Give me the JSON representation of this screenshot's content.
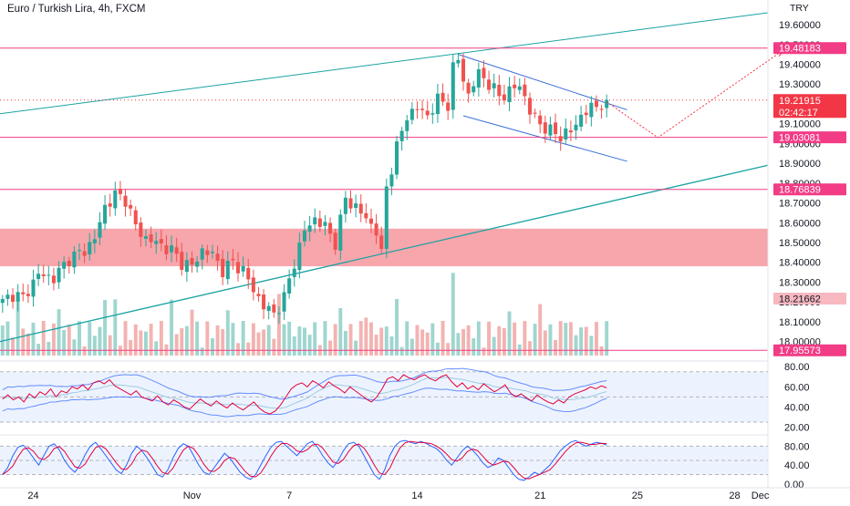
{
  "header": {
    "title": "Euro / Turkish Lira, 4h, FXCM"
  },
  "axis_currency": "TRY",
  "chart_data": [
    {
      "type": "candlestick",
      "symbol": "EURTRY",
      "interval": "4h",
      "ylim": [
        17.92,
        19.66
      ],
      "y_ticks": [
        "19.60000",
        "19.50000",
        "19.40000",
        "19.30000",
        "19.20000",
        "19.10000",
        "19.00000",
        "18.90000",
        "18.80000",
        "18.70000",
        "18.60000",
        "18.50000",
        "18.40000",
        "18.30000",
        "18.20000",
        "18.10000",
        "18.00000"
      ],
      "y_tick_values": [
        19.6,
        19.5,
        19.4,
        19.3,
        19.2,
        19.1,
        19.0,
        18.9,
        18.8,
        18.7,
        18.6,
        18.5,
        18.4,
        18.3,
        18.2,
        18.1,
        18.0
      ],
      "x_ticks": [
        {
          "label": "24",
          "bar": 6
        },
        {
          "label": "Nov",
          "bar": 37
        },
        {
          "label": "7",
          "bar": 56
        },
        {
          "label": "14",
          "bar": 81
        },
        {
          "label": "21",
          "bar": 105
        },
        {
          "label": "25",
          "bar": 124
        },
        {
          "label": "28",
          "bar": 143
        },
        {
          "label": "Dec",
          "bar": 148
        }
      ],
      "ohlc_key_closes": [
        [
          0,
          18.2
        ],
        [
          2,
          18.24
        ],
        [
          4,
          18.22
        ],
        [
          7,
          18.34
        ],
        [
          10,
          18.32
        ],
        [
          13,
          18.42
        ],
        [
          16,
          18.46
        ],
        [
          18,
          18.52
        ],
        [
          20,
          18.68
        ],
        [
          22,
          18.74
        ],
        [
          24,
          18.72
        ],
        [
          26,
          18.58
        ],
        [
          28,
          18.52
        ],
        [
          30,
          18.5
        ],
        [
          33,
          18.46
        ],
        [
          35,
          18.4
        ],
        [
          37,
          18.38
        ],
        [
          39,
          18.46
        ],
        [
          41,
          18.44
        ],
        [
          43,
          18.36
        ],
        [
          45,
          18.4
        ],
        [
          47,
          18.36
        ],
        [
          49,
          18.26
        ],
        [
          51,
          18.18
        ],
        [
          53,
          18.14
        ],
        [
          55,
          18.22
        ],
        [
          57,
          18.4
        ],
        [
          59,
          18.56
        ],
        [
          61,
          18.62
        ],
        [
          63,
          18.58
        ],
        [
          65,
          18.5
        ],
        [
          67,
          18.72
        ],
        [
          69,
          18.68
        ],
        [
          71,
          18.62
        ],
        [
          73,
          18.56
        ],
        [
          74,
          18.44
        ],
        [
          75,
          18.78
        ],
        [
          77,
          18.98
        ],
        [
          79,
          19.14
        ],
        [
          81,
          19.18
        ],
        [
          83,
          19.14
        ],
        [
          85,
          19.22
        ],
        [
          87,
          19.2
        ],
        [
          88,
          19.38
        ],
        [
          89,
          19.42
        ],
        [
          91,
          19.24
        ],
        [
          93,
          19.36
        ],
        [
          95,
          19.3
        ],
        [
          97,
          19.24
        ],
        [
          99,
          19.26
        ],
        [
          101,
          19.3
        ],
        [
          103,
          19.16
        ],
        [
          105,
          19.1
        ],
        [
          107,
          19.06
        ],
        [
          109,
          19.04
        ],
        [
          111,
          19.06
        ],
        [
          113,
          19.14
        ],
        [
          115,
          19.18
        ],
        [
          117,
          19.2
        ],
        [
          118,
          19.22
        ]
      ],
      "horizontal_levels": [
        {
          "price": 19.48183,
          "label": "19.48183",
          "color": "#f23c85"
        },
        {
          "price": 19.03081,
          "label": "19.03081",
          "color": "#f23c85"
        },
        {
          "price": 18.76839,
          "label": "18.76839",
          "color": "#f23c85"
        },
        {
          "price": 17.95573,
          "label": "17.95573",
          "color": "#f23c85"
        }
      ],
      "last_price": {
        "price": 19.21915,
        "label": "19.21915",
        "countdown": "02:42:17",
        "color": "#f23645"
      },
      "other_marker": {
        "price": 18.21662,
        "label": "18.21662",
        "color": "#f7b8c0"
      },
      "zone": {
        "top": 18.57,
        "bottom": 18.38,
        "color": "#f7a1a8"
      },
      "colors": {
        "up": "#26a69a",
        "down": "#ef5350",
        "vol_up": "#9fd6cf",
        "vol_down": "#f3b3b1",
        "trend": "#1aa3a3",
        "channel": "#3b6fd6",
        "projection": "#f23645"
      }
    },
    {
      "type": "line",
      "indicator": "rsi",
      "ylim": [
        15,
        82
      ],
      "y_ticks": [
        "80.00",
        "60.00",
        "40.00",
        "20.00"
      ],
      "y_tick_values": [
        80,
        60,
        40,
        20
      ],
      "dashed_levels": [
        75,
        50,
        25
      ],
      "series": [
        {
          "key": "rsi",
          "color": "#e3003d"
        },
        {
          "key": "rsi_ma",
          "color": "#9ccbe0"
        },
        {
          "key": "band_upper",
          "color": "#2962ff"
        },
        {
          "key": "band_lower",
          "color": "#2962ff"
        }
      ],
      "rsi_values": [
        48,
        52,
        47,
        50,
        45,
        53,
        49,
        55,
        52,
        58,
        50,
        56,
        54,
        60,
        58,
        62,
        57,
        64,
        66,
        63,
        67,
        61,
        58,
        55,
        52,
        56,
        50,
        48,
        46,
        51,
        45,
        42,
        47,
        44,
        40,
        38,
        43,
        48,
        44,
        41,
        46,
        42,
        39,
        44,
        40,
        37,
        41,
        45,
        39,
        35,
        33,
        36,
        42,
        50,
        58,
        62,
        64,
        60,
        66,
        63,
        59,
        65,
        61,
        58,
        54,
        60,
        56,
        52,
        48,
        45,
        50,
        58,
        68,
        70,
        66,
        72,
        69,
        67,
        70,
        72,
        68,
        66,
        70,
        72,
        65,
        60,
        64,
        58,
        61,
        57,
        63,
        59,
        55,
        58,
        62,
        54,
        50,
        53,
        49,
        46,
        52,
        48,
        45,
        43,
        47,
        44,
        50,
        53,
        55,
        57,
        60,
        58,
        61,
        59
      ]
    },
    {
      "type": "line",
      "indicator": "stochastic",
      "ylim": [
        -2,
        98
      ],
      "y_ticks": [
        "80.00",
        "40.00",
        "0.00"
      ],
      "y_tick_values": [
        80,
        40,
        0
      ],
      "dashed_levels": [
        80,
        50,
        20
      ],
      "series": [
        {
          "key": "k",
          "color": "#2962ff"
        },
        {
          "key": "d",
          "color": "#e3003d"
        }
      ],
      "k_values": [
        20,
        35,
        60,
        78,
        82,
        70,
        55,
        40,
        60,
        80,
        85,
        72,
        50,
        35,
        25,
        40,
        62,
        80,
        88,
        75,
        60,
        45,
        30,
        22,
        40,
        65,
        80,
        70,
        55,
        38,
        20,
        15,
        30,
        55,
        75,
        85,
        80,
        60,
        40,
        25,
        20,
        35,
        50,
        65,
        55,
        40,
        25,
        15,
        10,
        20,
        40,
        60,
        78,
        88,
        90,
        80,
        70,
        60,
        72,
        85,
        90,
        78,
        60,
        45,
        35,
        50,
        70,
        85,
        88,
        80,
        60,
        40,
        20,
        10,
        30,
        60,
        80,
        90,
        92,
        88,
        85,
        90,
        86,
        80,
        75,
        65,
        50,
        40,
        55,
        70,
        80,
        72,
        60,
        45,
        35,
        40,
        55,
        50,
        35,
        20,
        10,
        8,
        15,
        25,
        20,
        30,
        40,
        55,
        70,
        80,
        88,
        92,
        85,
        80,
        84,
        88,
        86,
        82
      ]
    }
  ]
}
